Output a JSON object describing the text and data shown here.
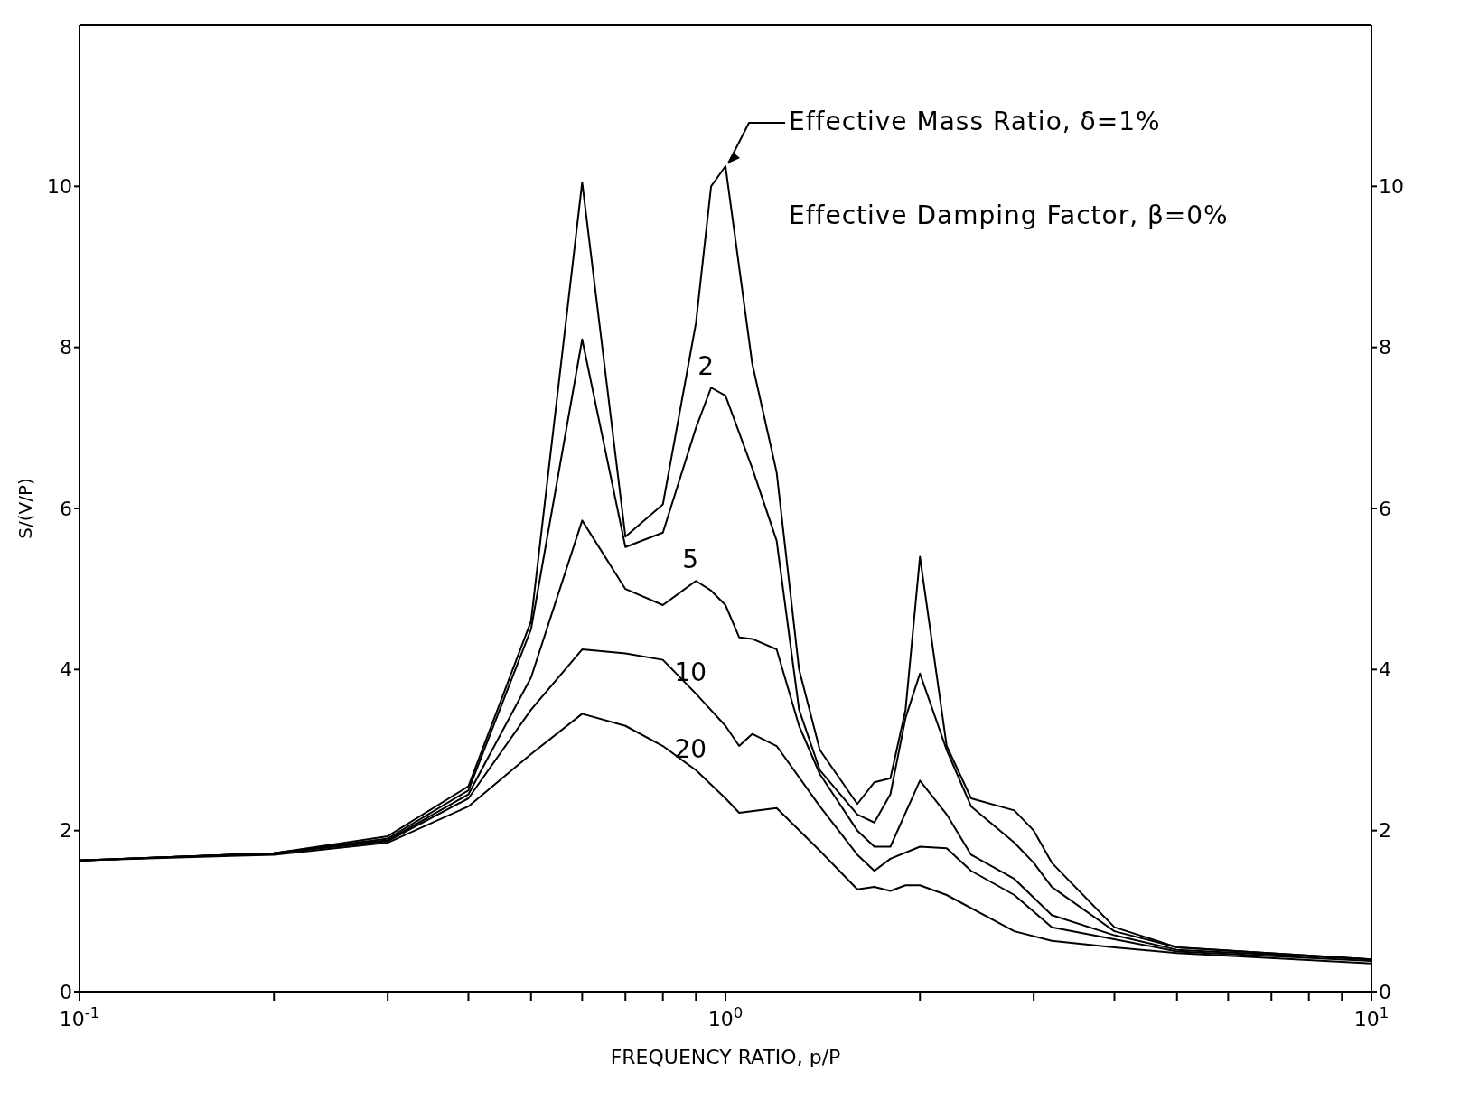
{
  "chart_data": {
    "type": "line",
    "xlabel": "FREQUENCY RATIO, p/P",
    "ylabel": "S/(V/P)",
    "log": "x",
    "grid": false,
    "legend": false,
    "marker": "none",
    "line_style": "solid",
    "xlim": [
      0.1,
      10
    ],
    "xticks": [
      {
        "value": 0.1,
        "label": "10$^{-1}$"
      },
      {
        "value": 0.2,
        "label": null
      },
      {
        "value": 0.3,
        "label": null
      },
      {
        "value": 0.4,
        "label": null
      },
      {
        "value": 0.5,
        "label": null
      },
      {
        "value": 0.6,
        "label": null
      },
      {
        "value": 0.7,
        "label": null
      },
      {
        "value": 0.8,
        "label": null
      },
      {
        "value": 0.9,
        "label": null
      },
      {
        "value": 1,
        "label": "10$^{0}$"
      },
      {
        "value": 2,
        "label": null
      },
      {
        "value": 3,
        "label": null
      },
      {
        "value": 4,
        "label": null
      },
      {
        "value": 5,
        "label": null
      },
      {
        "value": 6,
        "label": null
      },
      {
        "value": 7,
        "label": null
      },
      {
        "value": 8,
        "label": null
      },
      {
        "value": 9,
        "label": null
      },
      {
        "value": 10,
        "label": "10$^{1}$"
      }
    ],
    "ylim": [
      0,
      12
    ],
    "yticks": [
      0,
      2,
      4,
      6,
      8,
      10
    ],
    "y2lim": [
      0,
      12
    ],
    "y2ticks": [
      0,
      2,
      4,
      6,
      8,
      10
    ],
    "annotations": [
      {
        "text": "Effective Mass Ratio, δ=1%",
        "x": 1.0,
        "y": 10.25
      },
      "Effective Damping Factor, β=0%"
    ],
    "series": [
      {
        "color": "#000000",
        "x": [
          0.1,
          0.2,
          0.3,
          0.4,
          0.5,
          0.6,
          0.7,
          0.8,
          0.9,
          0.95,
          1.0,
          1.1,
          1.2,
          1.3,
          1.4,
          1.6,
          1.7,
          1.8,
          1.9,
          2.0,
          2.2,
          2.4,
          2.8,
          3.0,
          3.2,
          4.0,
          5,
          10
        ],
        "values": [
          1.63,
          1.72,
          1.93,
          2.55,
          4.6,
          10.05,
          5.65,
          6.05,
          8.3,
          10.0,
          10.25,
          7.8,
          6.45,
          4.0,
          3.0,
          2.33,
          2.6,
          2.65,
          3.5,
          5.4,
          3.05,
          2.4,
          2.25,
          2.0,
          1.6,
          0.8,
          0.55,
          0.4
        ]
      },
      {
        "name": "2",
        "color": "#000000",
        "x": [
          0.1,
          0.2,
          0.3,
          0.4,
          0.5,
          0.6,
          0.7,
          0.8,
          0.9,
          0.95,
          1.0,
          1.1,
          1.2,
          1.3,
          1.4,
          1.6,
          1.7,
          1.8,
          1.9,
          2.0,
          2.2,
          2.4,
          2.8,
          3.0,
          3.2,
          4.0,
          5,
          10
        ],
        "values": [
          1.63,
          1.72,
          1.9,
          2.5,
          4.5,
          8.1,
          5.52,
          5.7,
          7.0,
          7.5,
          7.4,
          6.5,
          5.6,
          3.5,
          2.75,
          2.2,
          2.1,
          2.45,
          3.4,
          3.95,
          3.0,
          2.3,
          1.85,
          1.6,
          1.3,
          0.75,
          0.55,
          0.4
        ]
      },
      {
        "name": "5",
        "color": "#000000",
        "x": [
          0.1,
          0.2,
          0.3,
          0.4,
          0.5,
          0.6,
          0.7,
          0.8,
          0.9,
          0.95,
          1.0,
          1.05,
          1.1,
          1.2,
          1.3,
          1.4,
          1.6,
          1.7,
          1.8,
          2.0,
          2.2,
          2.4,
          2.8,
          3.2,
          4.0,
          5,
          10
        ],
        "values": [
          1.63,
          1.72,
          1.88,
          2.45,
          3.9,
          5.85,
          5.0,
          4.8,
          5.1,
          4.98,
          4.8,
          4.4,
          4.38,
          4.25,
          3.3,
          2.7,
          2.0,
          1.8,
          1.8,
          2.62,
          2.2,
          1.7,
          1.4,
          0.95,
          0.7,
          0.52,
          0.4
        ]
      },
      {
        "name": "10",
        "color": "#000000",
        "x": [
          0.1,
          0.2,
          0.3,
          0.4,
          0.5,
          0.6,
          0.7,
          0.8,
          0.9,
          1.0,
          1.05,
          1.1,
          1.2,
          1.4,
          1.6,
          1.7,
          1.8,
          2.0,
          2.2,
          2.4,
          2.8,
          3.2,
          4.0,
          5,
          10
        ],
        "values": [
          1.63,
          1.72,
          1.87,
          2.4,
          3.5,
          4.25,
          4.2,
          4.12,
          3.7,
          3.3,
          3.05,
          3.2,
          3.05,
          2.3,
          1.7,
          1.5,
          1.65,
          1.8,
          1.78,
          1.5,
          1.2,
          0.8,
          0.65,
          0.5,
          0.38
        ]
      },
      {
        "name": "20",
        "color": "#000000",
        "x": [
          0.1,
          0.2,
          0.3,
          0.4,
          0.5,
          0.6,
          0.7,
          0.8,
          0.9,
          1.0,
          1.05,
          1.2,
          1.4,
          1.6,
          1.7,
          1.8,
          1.9,
          2.0,
          2.2,
          2.8,
          3.2,
          4.0,
          5,
          10
        ],
        "values": [
          1.63,
          1.7,
          1.85,
          2.3,
          2.95,
          3.45,
          3.3,
          3.05,
          2.75,
          2.4,
          2.22,
          2.28,
          1.75,
          1.27,
          1.3,
          1.25,
          1.32,
          1.32,
          1.2,
          0.75,
          0.63,
          0.55,
          0.48,
          0.35
        ]
      }
    ]
  }
}
